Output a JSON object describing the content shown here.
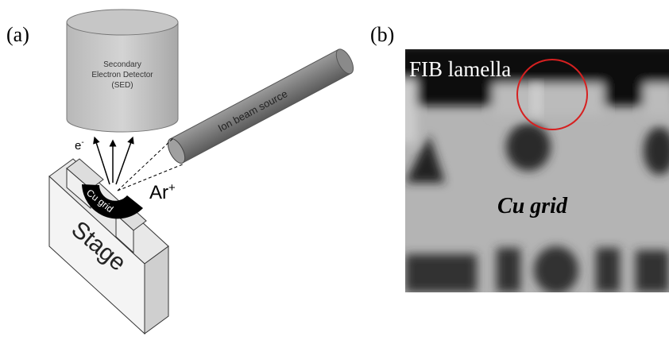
{
  "panel_a": {
    "label": "(a)",
    "detector": [
      "Secondary",
      "Electron Detector",
      "(SED)"
    ],
    "ion_source": "Ion beam source",
    "electron": "e",
    "electron_charge": "-",
    "ion": "Ar",
    "ion_charge": "+",
    "grid": "Cu grid",
    "stage": "Stage"
  },
  "panel_b": {
    "label": "(b)",
    "lamella": "FIB lamella",
    "grid": "Cu grid"
  }
}
